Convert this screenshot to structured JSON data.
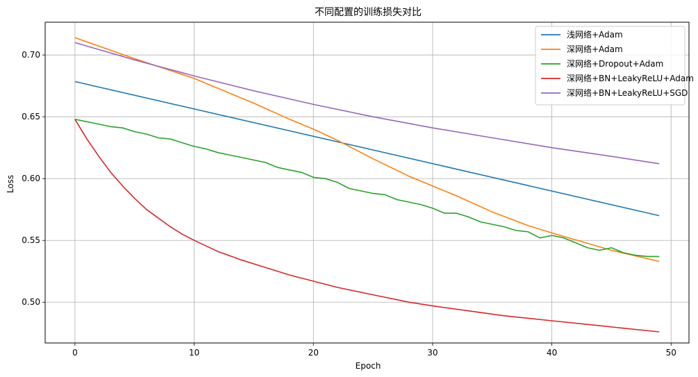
{
  "chart_data": {
    "type": "line",
    "title": "不同配置的训练损失对比",
    "xlabel": "Epoch",
    "ylabel": "Loss",
    "xlim": [
      -2.5,
      51.5
    ],
    "ylim": [
      0.467,
      0.7265
    ],
    "xticks": [
      0,
      10,
      20,
      30,
      40,
      50
    ],
    "yticks": [
      0.5,
      0.55,
      0.6,
      0.65,
      0.7
    ],
    "xtick_labels": [
      "0",
      "10",
      "20",
      "30",
      "40",
      "50"
    ],
    "ytick_labels": [
      "0.50",
      "0.55",
      "0.60",
      "0.65",
      "0.70"
    ],
    "grid": true,
    "legend_position": "top-right",
    "series": [
      {
        "name": "浅网络+Adam",
        "color": "#1f77b4",
        "x": [
          0,
          49
        ],
        "values": [
          0.6785,
          0.57
        ]
      },
      {
        "name": "深网络+Adam",
        "color": "#ff7f0e",
        "x": [
          0,
          5,
          10,
          15,
          18,
          20,
          22,
          25,
          28,
          30,
          32,
          35,
          38,
          40,
          45,
          49
        ],
        "values": [
          0.714,
          0.697,
          0.681,
          0.661,
          0.648,
          0.64,
          0.631,
          0.616,
          0.602,
          0.594,
          0.586,
          0.573,
          0.562,
          0.556,
          0.542,
          0.533
        ]
      },
      {
        "name": "深网络+Dropout+Adam",
        "color": "#2ca02c",
        "x": [
          0,
          1,
          2,
          3,
          4,
          5,
          6,
          7,
          8,
          9,
          10,
          11,
          12,
          13,
          14,
          15,
          16,
          17,
          18,
          19,
          20,
          21,
          22,
          23,
          24,
          25,
          26,
          27,
          28,
          29,
          30,
          31,
          32,
          33,
          34,
          35,
          36,
          37,
          38,
          39,
          40,
          41,
          42,
          43,
          44,
          45,
          46,
          47,
          48,
          49
        ],
        "values": [
          0.648,
          0.646,
          0.644,
          0.642,
          0.641,
          0.638,
          0.636,
          0.633,
          0.632,
          0.629,
          0.626,
          0.624,
          0.621,
          0.619,
          0.617,
          0.615,
          0.613,
          0.609,
          0.607,
          0.605,
          0.601,
          0.6,
          0.597,
          0.592,
          0.59,
          0.588,
          0.587,
          0.583,
          0.581,
          0.579,
          0.576,
          0.572,
          0.572,
          0.569,
          0.565,
          0.563,
          0.561,
          0.558,
          0.557,
          0.552,
          0.554,
          0.552,
          0.548,
          0.544,
          0.542,
          0.544,
          0.54,
          0.538,
          0.537,
          0.537
        ]
      },
      {
        "name": "深网络+BN+LeakyReLU+Adam",
        "color": "#d62728",
        "x": [
          0,
          1,
          2,
          3,
          4,
          5,
          6,
          7,
          8,
          9,
          10,
          12,
          14,
          16,
          18,
          20,
          22,
          25,
          28,
          30,
          33,
          36,
          40,
          44,
          49
        ],
        "values": [
          0.648,
          0.632,
          0.618,
          0.605,
          0.594,
          0.584,
          0.575,
          0.568,
          0.561,
          0.555,
          0.55,
          0.541,
          0.534,
          0.528,
          0.522,
          0.517,
          0.512,
          0.506,
          0.5,
          0.497,
          0.493,
          0.489,
          0.485,
          0.481,
          0.476
        ]
      },
      {
        "name": "深网络+BN+LeakyReLU+SGD",
        "color": "#9467bd",
        "x": [
          0,
          5,
          10,
          15,
          20,
          25,
          30,
          35,
          40,
          45,
          49
        ],
        "values": [
          0.71,
          0.696,
          0.683,
          0.671,
          0.66,
          0.65,
          0.641,
          0.633,
          0.625,
          0.618,
          0.612
        ]
      }
    ]
  }
}
